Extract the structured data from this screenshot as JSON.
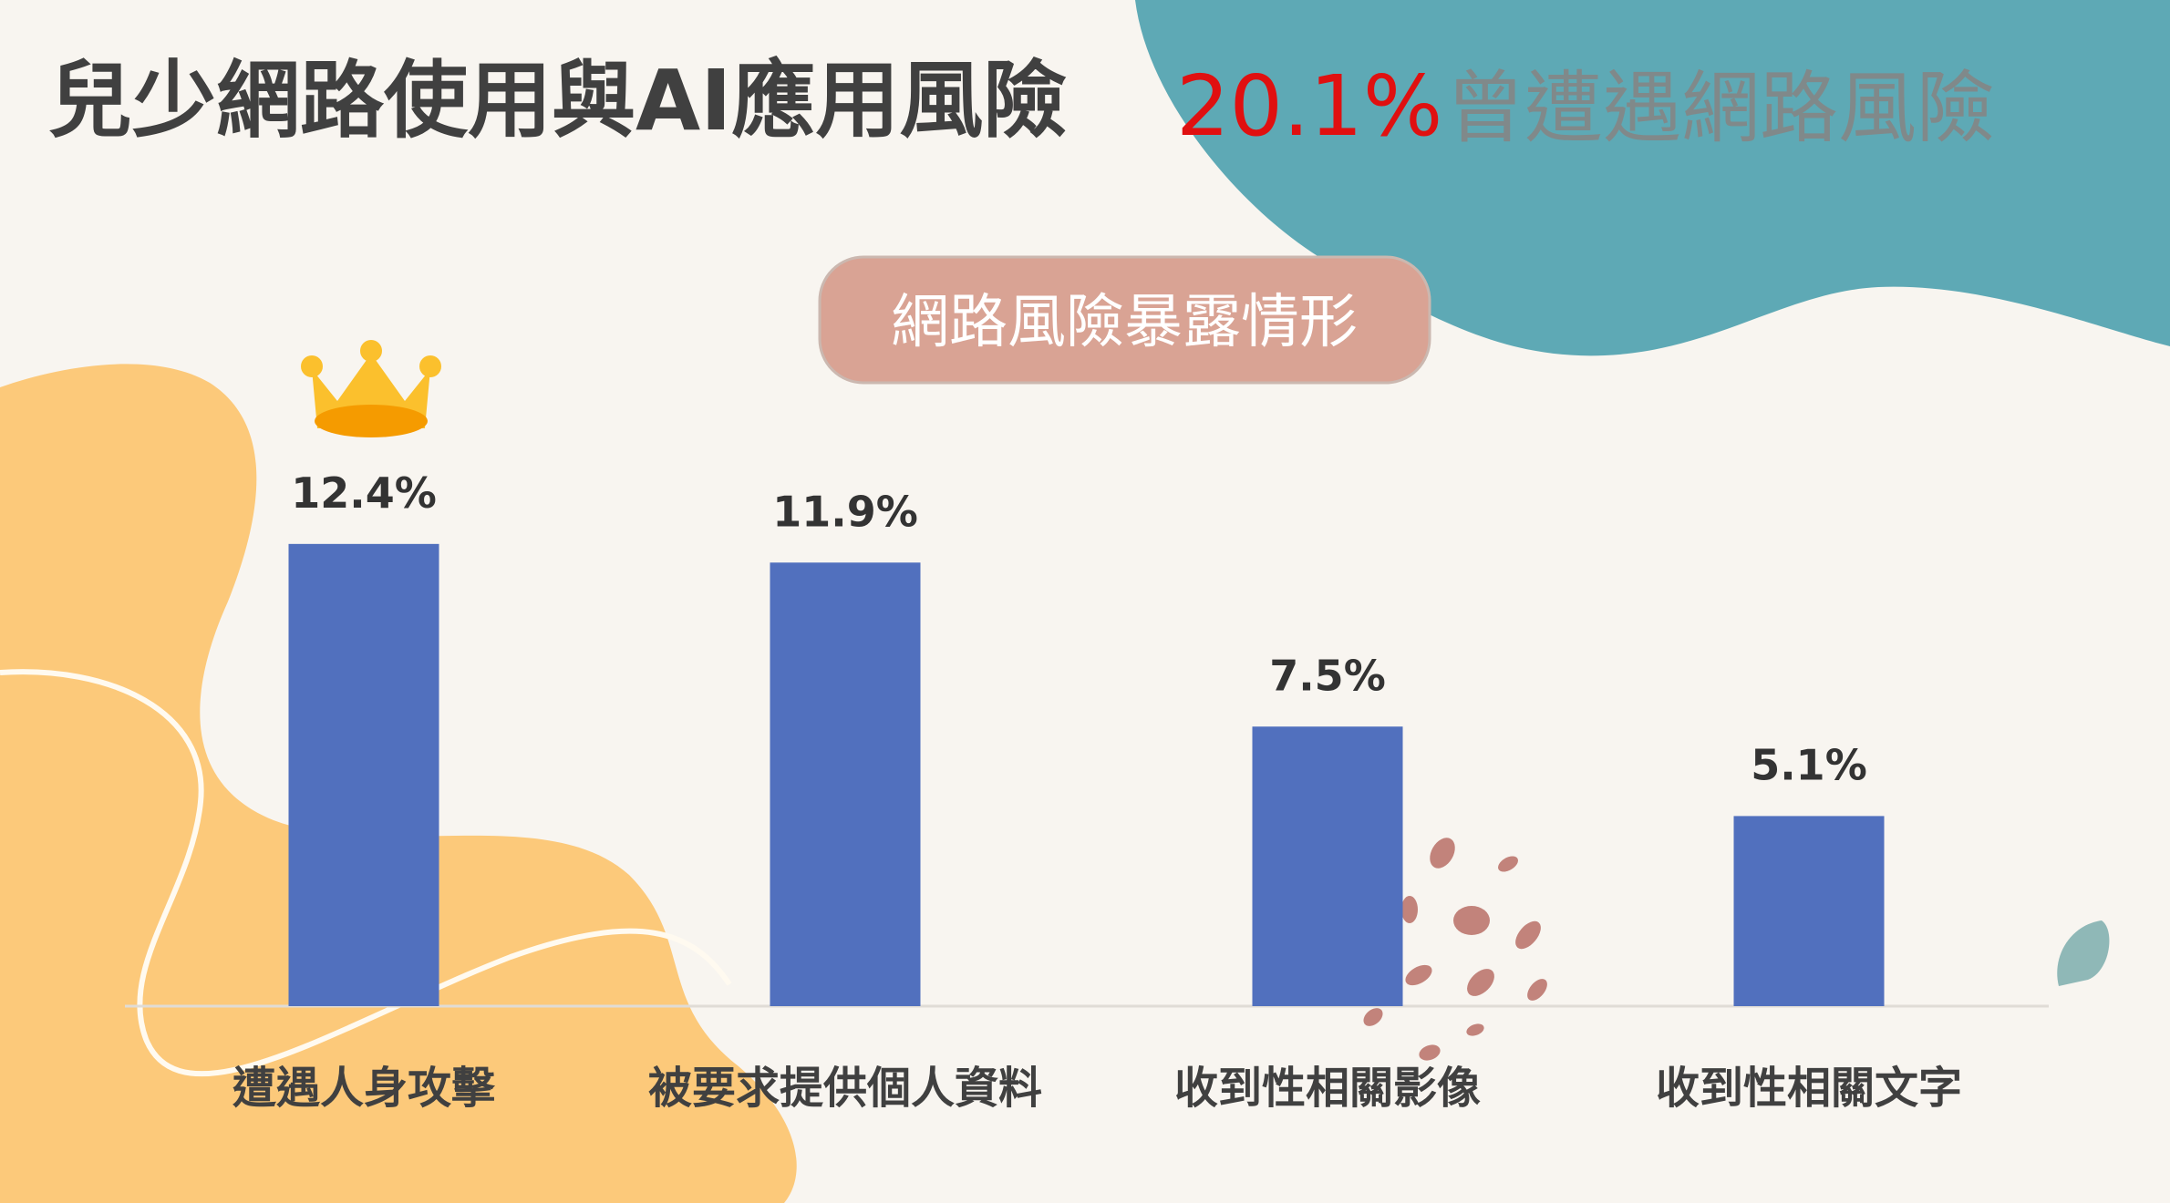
{
  "chart_data": {
    "type": "bar",
    "title": "兒少網路使用與AI應用風險",
    "headline": "20.1%",
    "headline_text": "曾遭遇網路風險",
    "subtitle": "網路風險暴露情形",
    "categories": [
      "遭遇人身攻擊",
      "被要求提供個人資料",
      "收到性相關影像",
      "收到性相關文字"
    ],
    "values": [
      12.4,
      11.9,
      7.5,
      5.1
    ],
    "value_labels": [
      "12.4%",
      "11.9%",
      "7.5%",
      "5.1%"
    ],
    "color": "#5170be"
  }
}
